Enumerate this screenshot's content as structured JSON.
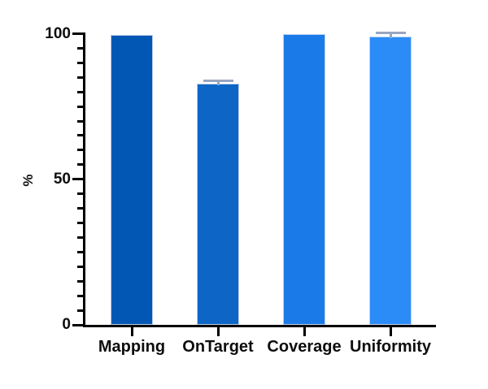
{
  "chart_data": {
    "type": "bar",
    "title": "",
    "xlabel": "",
    "ylabel": "%",
    "categories": [
      "Mapping",
      "OnTarget",
      "Coverage",
      "Uniformity"
    ],
    "values": [
      99.6,
      82.8,
      100,
      99.0
    ],
    "errors": [
      0,
      1.0,
      0,
      1.2
    ],
    "bar_colors": [
      "#0257b5",
      "#0d66c6",
      "#1a7be8",
      "#2b8cf8"
    ],
    "error_bar_color": "#9aa6c0",
    "axis_color": "#000000",
    "text_color": "#0d0d0d",
    "ylim": [
      0,
      100
    ],
    "yticks_major": [
      0,
      50,
      100
    ],
    "ytick_minor_step": 5,
    "grid": false,
    "legend": "none",
    "background": "#ffffff"
  }
}
